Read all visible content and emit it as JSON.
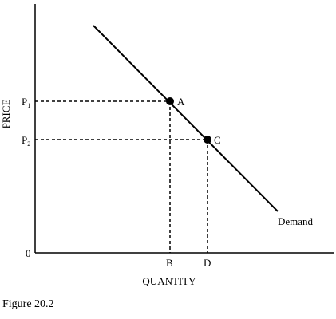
{
  "chart_data": {
    "type": "line",
    "title": "",
    "xlabel": "QUANTITY",
    "ylabel": "PRICE",
    "origin_label": "0",
    "series": [
      {
        "name": "Demand",
        "values": []
      }
    ],
    "points": [
      {
        "label": "A",
        "price_label": "P",
        "price_sub": "1",
        "quantity_label": "B"
      },
      {
        "label": "C",
        "price_label": "P",
        "price_sub": "2",
        "quantity_label": "D"
      }
    ],
    "grid": false
  },
  "figure": {
    "caption": "Figure 20.2"
  }
}
